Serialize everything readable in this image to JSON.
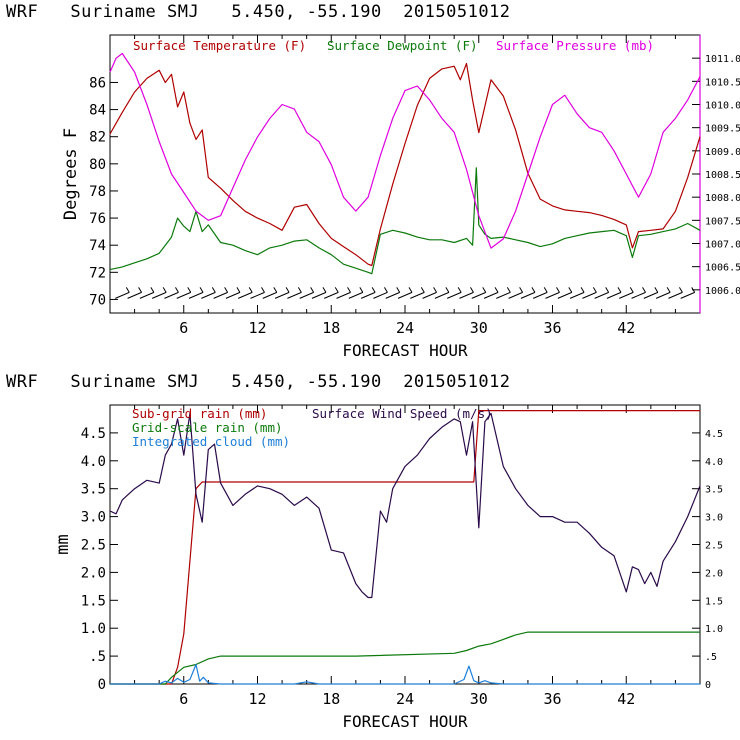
{
  "chart_data": [
    {
      "type": "line",
      "title": "WRF   Suriname SMJ   5.450, -55.190  2015051012",
      "xlabel": "FORECAST HOUR",
      "ylabel": "Degrees F",
      "y2label": "",
      "xlim": [
        0,
        48
      ],
      "ylim": [
        69,
        89.5
      ],
      "y2lim": [
        1005.5,
        1011.5
      ],
      "x_ticks": [
        "6",
        "12",
        "18",
        "24",
        "30",
        "36",
        "42"
      ],
      "y_ticks": [
        "70",
        "72",
        "74",
        "76",
        "78",
        "80",
        "82",
        "84",
        "86"
      ],
      "y2_ticks": [
        "1006.0",
        "1006.5",
        "1007.0",
        "1007.5",
        "1008.0",
        "1008.5",
        "1009.0",
        "1009.5",
        "1010.0",
        "1010.5",
        "1011.0"
      ],
      "legend": [
        "Surface Temperature (F)",
        "Surface Dewpoint (F)",
        "Surface Pressure (mb)"
      ],
      "series": [
        {
          "name": "Surface Temperature (F)",
          "color": "#b00000",
          "axis": "left",
          "x": [
            0,
            1,
            2,
            3,
            4,
            4.5,
            5,
            5.5,
            6,
            6.5,
            7,
            7.5,
            8,
            9,
            10,
            11,
            12,
            13,
            14,
            15,
            16,
            17,
            18,
            19,
            20,
            21,
            21.3,
            22,
            23,
            24,
            25,
            26,
            27,
            28,
            28.5,
            29,
            29.5,
            30,
            31,
            32,
            33,
            34,
            35,
            36,
            37,
            38,
            39,
            40,
            41,
            42,
            42.5,
            43,
            44,
            45,
            46,
            47,
            48
          ],
          "y": [
            82.2,
            83.8,
            85.3,
            86.3,
            86.9,
            86.0,
            86.6,
            84.2,
            85.3,
            83.0,
            81.8,
            82.5,
            79.0,
            78.2,
            77.3,
            76.5,
            76.0,
            75.6,
            75.1,
            76.8,
            77.0,
            75.6,
            74.5,
            73.9,
            73.3,
            72.6,
            72.5,
            75.2,
            78.5,
            81.5,
            84.3,
            86.3,
            87.0,
            87.2,
            86.2,
            87.4,
            84.7,
            82.3,
            86.2,
            85.0,
            82.5,
            79.3,
            77.4,
            76.9,
            76.6,
            76.5,
            76.4,
            76.2,
            75.9,
            75.5,
            73.8,
            75.0,
            75.1,
            75.2,
            76.5,
            79.0,
            82.0
          ]
        },
        {
          "name": "Surface Dewpoint (F)",
          "color": "#0b7a0b",
          "axis": "left",
          "x": [
            0,
            1,
            2,
            3,
            4,
            5,
            5.5,
            6,
            6.5,
            7,
            7.5,
            8,
            9,
            10,
            11,
            12,
            13,
            14,
            15,
            16,
            17,
            18,
            19,
            20,
            21,
            21.3,
            22,
            23,
            24,
            25,
            26,
            27,
            28,
            29,
            29.5,
            29.8,
            30,
            30.5,
            31,
            32,
            33,
            34,
            35,
            36,
            37,
            38,
            39,
            40,
            41,
            42,
            42.5,
            43,
            44,
            45,
            46,
            47,
            48
          ],
          "y": [
            72.2,
            72.4,
            72.7,
            73.0,
            73.4,
            74.6,
            76.0,
            75.4,
            75.0,
            76.5,
            75.0,
            75.5,
            74.2,
            74.0,
            73.6,
            73.3,
            73.8,
            74.0,
            74.3,
            74.4,
            73.8,
            73.3,
            72.6,
            72.3,
            72.0,
            71.9,
            74.8,
            75.1,
            74.9,
            74.6,
            74.4,
            74.4,
            74.2,
            74.5,
            74.0,
            79.7,
            75.5,
            74.8,
            74.5,
            74.6,
            74.4,
            74.2,
            73.9,
            74.1,
            74.5,
            74.7,
            74.9,
            75.0,
            75.1,
            74.7,
            73.1,
            74.7,
            74.8,
            75.0,
            75.2,
            75.6,
            75.1
          ]
        },
        {
          "name": "Surface Pressure (mb)",
          "color": "#e000e0",
          "axis": "right",
          "x": [
            0,
            0.5,
            1,
            2,
            3,
            4,
            5,
            6,
            7,
            8,
            9,
            10,
            11,
            12,
            13,
            14,
            15,
            16,
            17,
            18,
            19,
            20,
            21,
            22,
            23,
            24,
            25,
            26,
            27,
            28,
            29,
            30,
            31,
            32,
            33,
            34,
            35,
            36,
            37,
            38,
            39,
            40,
            41,
            42,
            43,
            44,
            45,
            46,
            47,
            48
          ],
          "y": [
            1010.7,
            1011.0,
            1011.1,
            1010.7,
            1010.0,
            1009.2,
            1008.5,
            1008.1,
            1007.7,
            1007.5,
            1007.6,
            1008.2,
            1008.8,
            1009.3,
            1009.7,
            1010.0,
            1009.9,
            1009.4,
            1009.2,
            1008.7,
            1008.0,
            1007.7,
            1008.0,
            1008.9,
            1009.7,
            1010.3,
            1010.4,
            1010.1,
            1009.7,
            1009.4,
            1008.6,
            1007.6,
            1006.9,
            1007.1,
            1007.7,
            1008.5,
            1009.3,
            1010.0,
            1010.2,
            1009.8,
            1009.5,
            1009.4,
            1009.0,
            1008.5,
            1008.0,
            1008.5,
            1009.4,
            1009.7,
            1010.1,
            1010.6
          ]
        }
      ],
      "wind_barb_row_value": 70.3
    },
    {
      "type": "line",
      "title": "WRF   Suriname SMJ   5.450, -55.190  2015051012",
      "xlabel": "FORECAST HOUR",
      "ylabel": "mm",
      "xlim": [
        0,
        48
      ],
      "ylim": [
        0,
        5.0
      ],
      "y2lim": [
        0,
        5.0
      ],
      "x_ticks": [
        "6",
        "12",
        "18",
        "24",
        "30",
        "36",
        "42"
      ],
      "y_ticks": [
        "0",
        ".5",
        "1.0",
        "1.5",
        "2.0",
        "2.5",
        "3.0",
        "3.5",
        "4.0",
        "4.5"
      ],
      "y2_ticks": [
        "0",
        ".5",
        "1.0",
        "1.5",
        "2.0",
        "2.5",
        "3.0",
        "3.5",
        "4.0",
        "4.5"
      ],
      "legend": [
        "Sub-grid rain (mm)",
        "Grid-scale rain (mm)",
        "Integrated cloud (mm)",
        "Surface Wind Speed (m/s)"
      ],
      "series": [
        {
          "name": "Sub-grid rain (mm)",
          "color": "#b00000",
          "axis": "left",
          "x": [
            0,
            5,
            5.5,
            6,
            6.5,
            7,
            7.5,
            29,
            29.6,
            30,
            48
          ],
          "y": [
            0,
            0,
            0.3,
            0.9,
            2.2,
            3.5,
            3.62,
            3.62,
            3.62,
            4.9,
            4.9
          ]
        },
        {
          "name": "Grid-scale rain (mm)",
          "color": "#0b7a0b",
          "axis": "left",
          "x": [
            0,
            4.5,
            5,
            6,
            7,
            8,
            9,
            10,
            20,
            28,
            29,
            30,
            31,
            32,
            33,
            34,
            48
          ],
          "y": [
            0,
            0,
            0.12,
            0.3,
            0.35,
            0.45,
            0.5,
            0.5,
            0.5,
            0.55,
            0.6,
            0.68,
            0.72,
            0.8,
            0.88,
            0.93,
            0.93
          ]
        },
        {
          "name": "Integrated cloud (mm)",
          "color": "#1e7fd8",
          "axis": "left",
          "x": [
            0,
            4,
            4.5,
            5,
            5.5,
            6,
            6.5,
            7,
            7.3,
            7.6,
            8,
            9,
            15,
            16,
            17,
            28,
            28.8,
            29.2,
            29.6,
            30,
            30.5,
            31,
            32,
            48
          ],
          "y": [
            0,
            0,
            0.05,
            0.02,
            0.1,
            0.03,
            0.08,
            0.35,
            0.05,
            0.12,
            0.02,
            0,
            0,
            0.04,
            0,
            0,
            0.08,
            0.32,
            0.06,
            0.02,
            0.06,
            0.02,
            0,
            0
          ]
        },
        {
          "name": "Surface Wind Speed (m/s)",
          "color": "#2a0a4a",
          "axis": "right",
          "x": [
            0,
            0.5,
            1,
            2,
            3,
            4,
            4.5,
            5,
            5.5,
            6,
            6.5,
            7,
            7.5,
            8,
            8.5,
            9,
            10,
            11,
            12,
            13,
            14,
            15,
            16,
            17,
            18,
            19,
            20,
            20.5,
            21,
            21.3,
            22,
            22.5,
            23,
            24,
            25,
            26,
            27,
            28,
            28.5,
            29,
            29.5,
            30,
            30.5,
            31,
            32,
            33,
            34,
            35,
            36,
            37,
            38,
            39,
            40,
            41,
            42,
            42.5,
            43,
            43.5,
            44,
            44.5,
            45,
            46,
            47,
            48
          ],
          "y": [
            3.1,
            3.05,
            3.3,
            3.5,
            3.65,
            3.6,
            4.1,
            4.3,
            4.75,
            4.1,
            4.85,
            3.4,
            2.9,
            4.2,
            4.3,
            3.6,
            3.2,
            3.4,
            3.55,
            3.5,
            3.4,
            3.2,
            3.35,
            3.15,
            2.4,
            2.35,
            1.8,
            1.65,
            1.55,
            1.55,
            3.1,
            2.9,
            3.5,
            3.9,
            4.1,
            4.4,
            4.6,
            4.75,
            4.7,
            4.1,
            4.7,
            2.8,
            4.7,
            4.85,
            3.9,
            3.5,
            3.2,
            3.0,
            3.0,
            2.9,
            2.9,
            2.7,
            2.45,
            2.3,
            1.65,
            2.1,
            2.05,
            1.8,
            2.0,
            1.75,
            2.2,
            2.55,
            3.0,
            3.55
          ]
        }
      ]
    }
  ]
}
